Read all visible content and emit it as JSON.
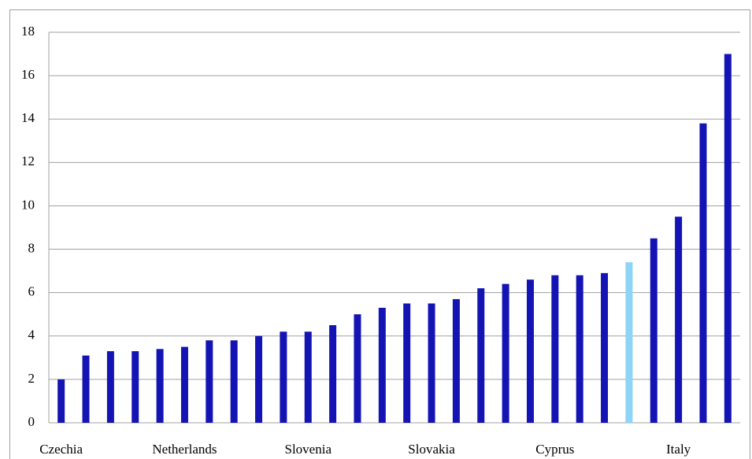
{
  "chart_data": {
    "type": "bar",
    "categories": [
      "Czechia",
      null,
      null,
      null,
      null,
      "Netherlands",
      null,
      null,
      null,
      null,
      "Slovenia",
      null,
      null,
      null,
      null,
      "Slovakia",
      null,
      null,
      null,
      null,
      "Cyprus",
      null,
      null,
      null,
      null,
      "Italy",
      null,
      null
    ],
    "values": [
      2.0,
      3.1,
      3.3,
      3.3,
      3.4,
      3.5,
      3.8,
      3.8,
      4.0,
      4.2,
      4.2,
      4.5,
      5.0,
      5.3,
      5.5,
      5.5,
      5.7,
      6.2,
      6.4,
      6.6,
      6.8,
      6.8,
      6.9,
      7.4,
      8.5,
      9.5,
      13.8,
      17.0
    ],
    "colors": [
      "#1414b4",
      "#1414b4",
      "#1414b4",
      "#1414b4",
      "#1414b4",
      "#1414b4",
      "#1414b4",
      "#1414b4",
      "#1414b4",
      "#1414b4",
      "#1414b4",
      "#1414b4",
      "#1414b4",
      "#1414b4",
      "#1414b4",
      "#1414b4",
      "#1414b4",
      "#1414b4",
      "#1414b4",
      "#1414b4",
      "#1414b4",
      "#1414b4",
      "#1414b4",
      "#8dd4f7",
      "#1414b4",
      "#1414b4",
      "#1414b4",
      "#1414b4"
    ],
    "ylim": [
      0,
      18
    ],
    "yticks": [
      0,
      2,
      4,
      6,
      8,
      10,
      12,
      14,
      16,
      18
    ],
    "grid": true
  }
}
